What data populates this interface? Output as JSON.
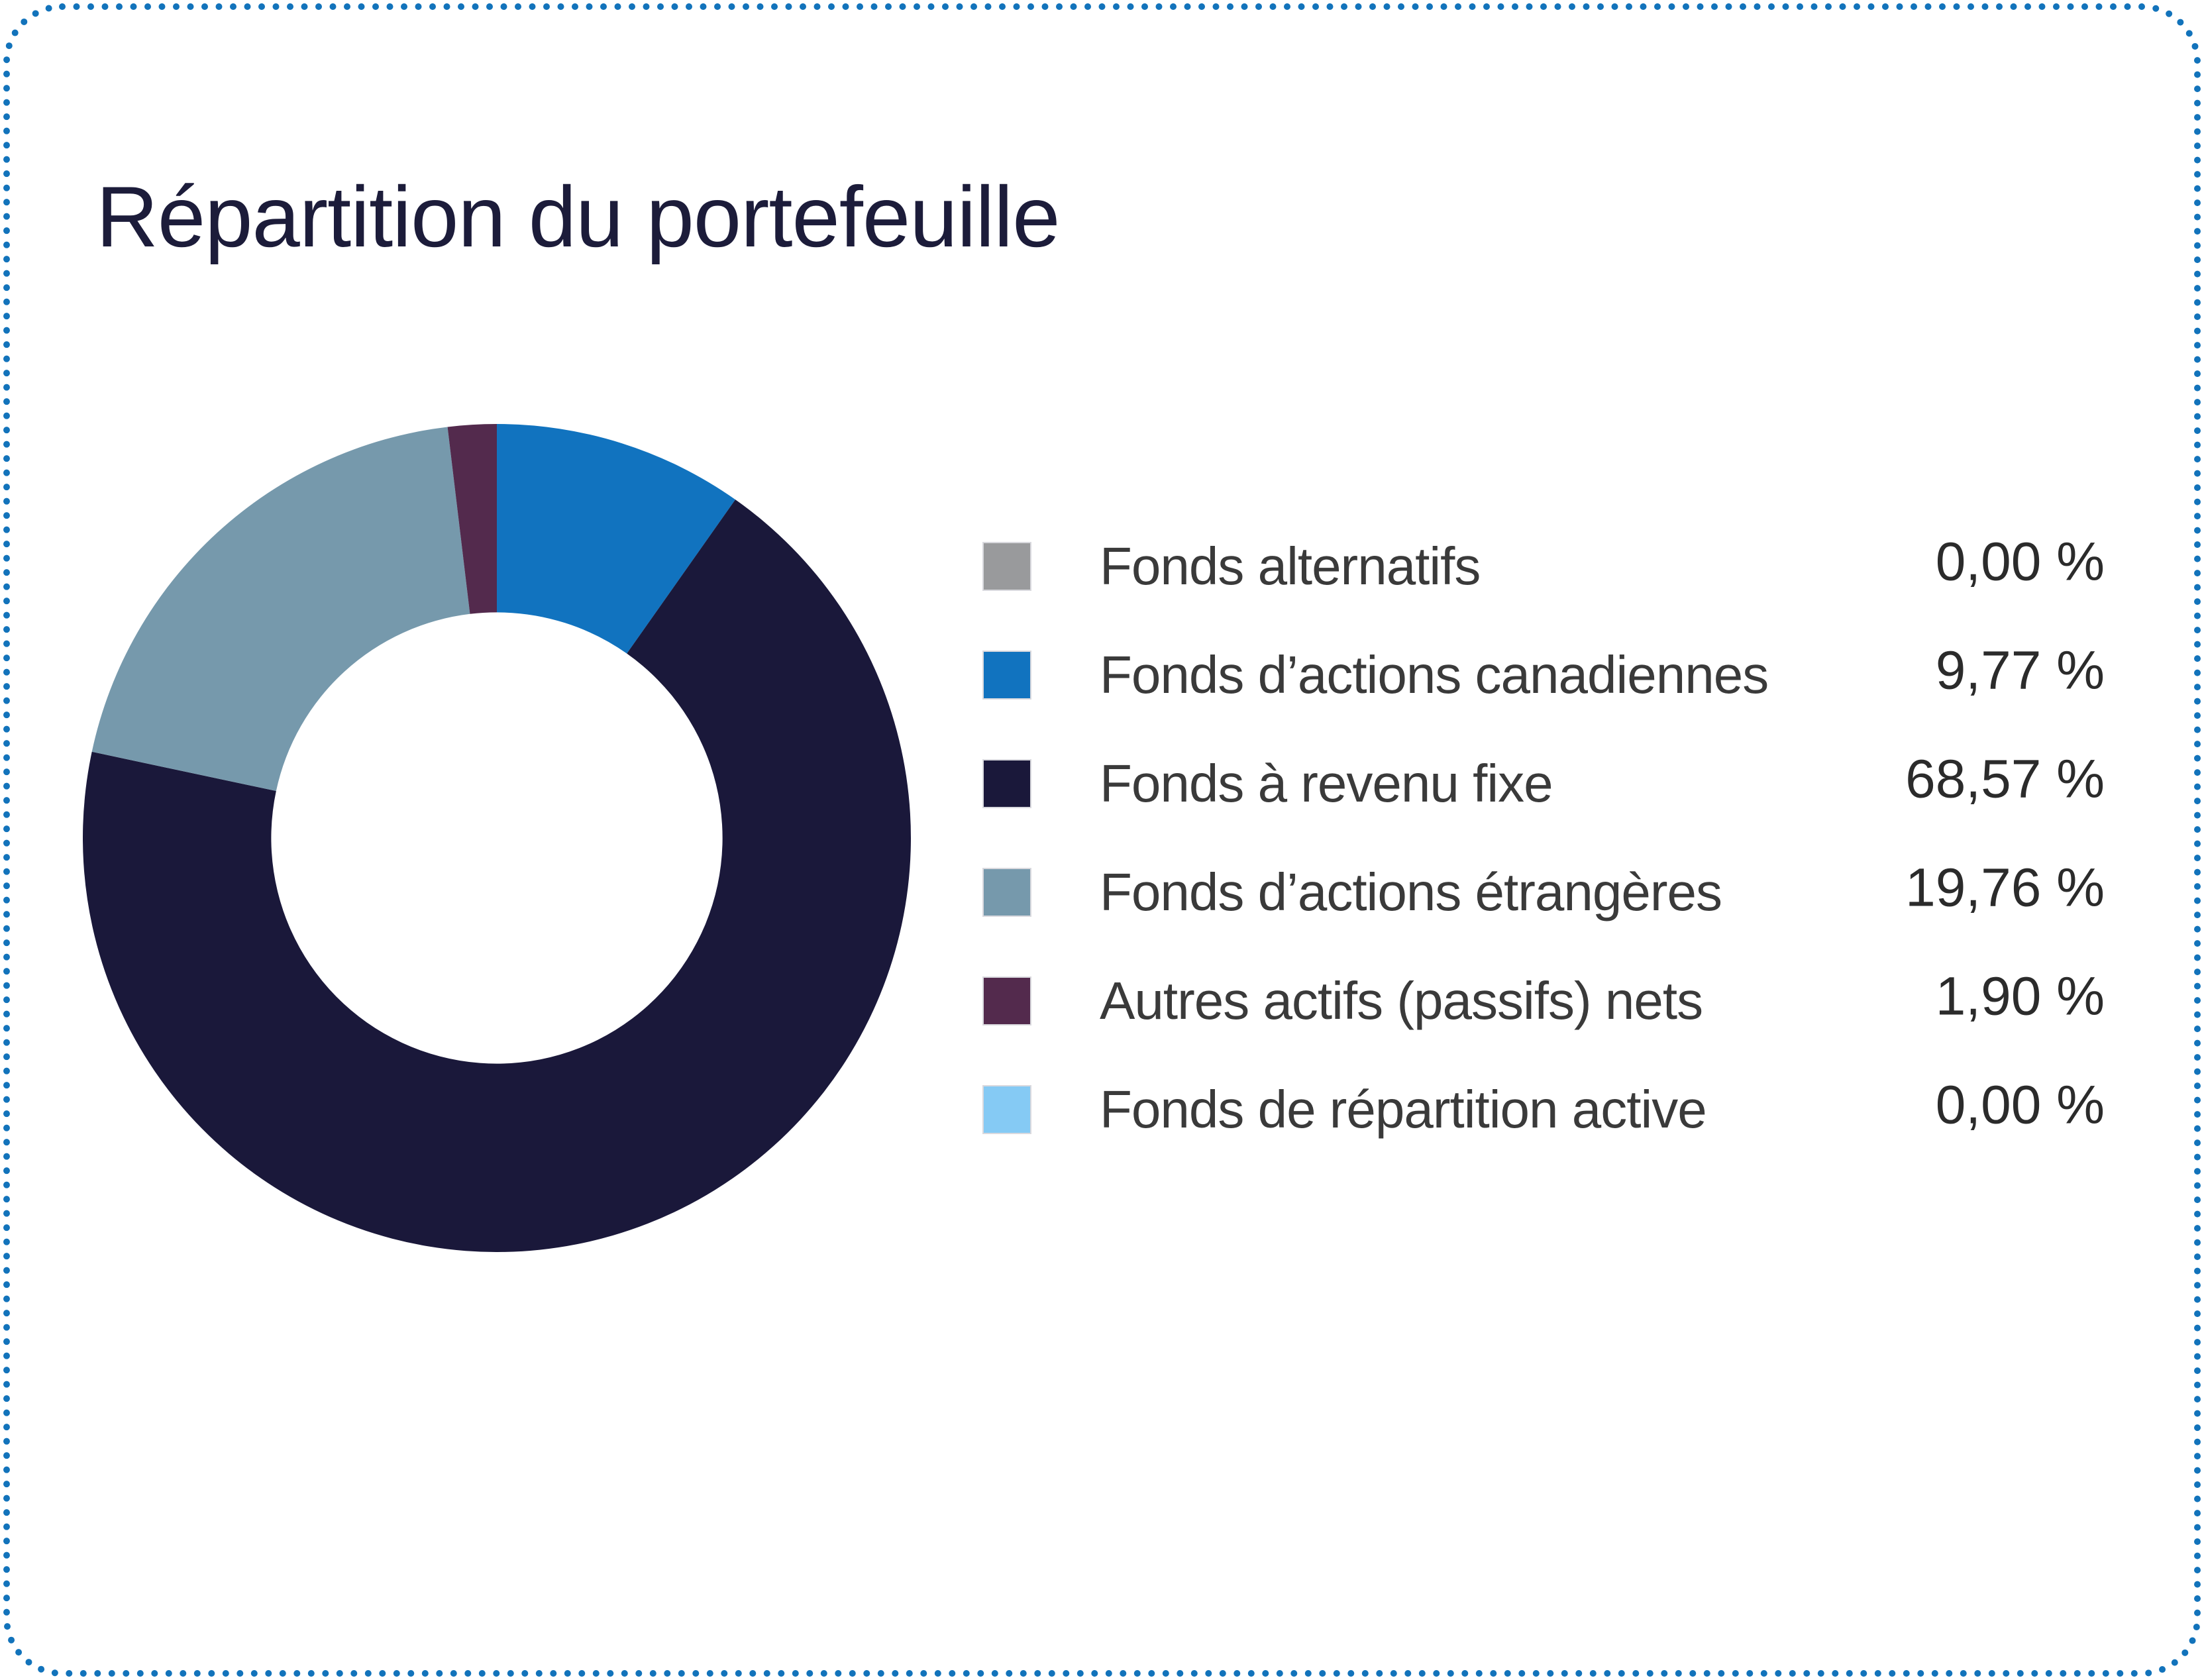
{
  "card": {
    "title": "Répartition du portefeuille",
    "title_color": "#1c1c3a",
    "border_color": "#1273bb",
    "background_color": "#ffffff"
  },
  "chart_data": {
    "type": "pie",
    "variant": "donut",
    "title": "Répartition du portefeuille",
    "legend_position": "right",
    "inner_radius_ratio": 0.545,
    "start_angle_deg": 0,
    "direction": "clockwise",
    "series": [
      {
        "label": "Fonds alternatifs",
        "value": 0.0,
        "display": "0,00 %",
        "color": "#999a9c"
      },
      {
        "label": "Fonds d’actions canadiennes",
        "value": 9.77,
        "display": "9,77 %",
        "color": "#1173bf"
      },
      {
        "label": "Fonds à revenu fixe",
        "value": 68.57,
        "display": "68,57 %",
        "color": "#1a183a"
      },
      {
        "label": "Fonds d’actions étrangères",
        "value": 19.76,
        "display": "19,76 %",
        "color": "#7699ac"
      },
      {
        "label": "Autres actifs (passifs) nets",
        "value": 1.9,
        "display": "1,90 %",
        "color": "#532a4d"
      },
      {
        "label": "Fonds de répartition active",
        "value": 0.0,
        "display": "0,00 %",
        "color": "#85caf4"
      }
    ]
  }
}
